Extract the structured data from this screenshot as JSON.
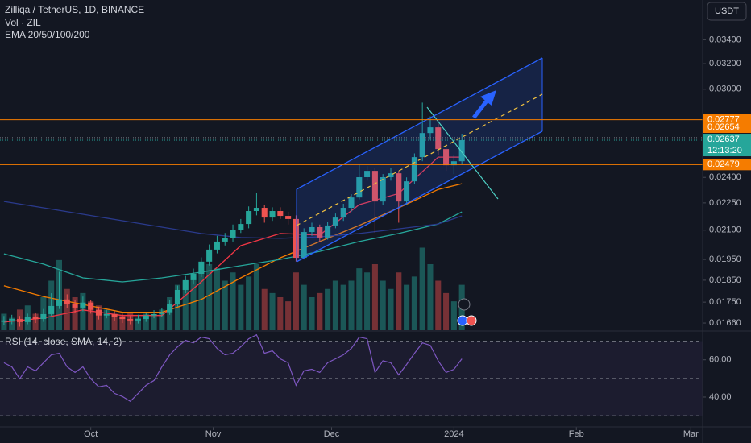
{
  "chart_data": [
    {
      "type": "candlestick",
      "title": "Zilliqa / TetherUS, 1D, BINANCE",
      "currency": "USDT",
      "x": [
        1,
        3,
        5,
        7,
        9,
        11,
        13,
        15,
        17,
        19,
        21,
        23,
        25,
        27,
        29,
        31,
        33,
        35,
        37,
        39,
        41,
        43,
        45,
        47,
        49,
        51,
        53,
        55,
        57,
        59,
        61,
        63,
        65,
        67,
        69,
        71,
        73,
        75,
        77,
        79,
        81,
        83,
        85,
        87,
        89,
        91,
        93,
        95,
        97,
        99,
        101,
        103,
        105,
        107,
        109,
        111,
        113,
        115,
        117
      ],
      "open": [
        0.01665,
        0.01671,
        0.01677,
        0.01664,
        0.01685,
        0.01677,
        0.01698,
        0.01733,
        0.01762,
        0.0174,
        0.01726,
        0.01748,
        0.01716,
        0.01692,
        0.01698,
        0.01685,
        0.01677,
        0.01671,
        0.01677,
        0.01692,
        0.01698,
        0.01706,
        0.0174,
        0.01805,
        0.0185,
        0.0188,
        0.01939,
        0.01999,
        0.0204,
        0.02057,
        0.02103,
        0.02133,
        0.02204,
        0.02222,
        0.02168,
        0.02204,
        0.02177,
        0.0216,
        0.01958,
        0.0209,
        0.02116,
        0.02061,
        0.02125,
        0.02168,
        0.02222,
        0.02281,
        0.02401,
        0.0244,
        0.02258,
        0.02401,
        0.02425,
        0.02258,
        0.02376,
        0.02526,
        0.02685,
        0.02724,
        0.02578,
        0.02475,
        0.025
      ],
      "close": [
        0.01671,
        0.01677,
        0.01664,
        0.01685,
        0.01677,
        0.01698,
        0.01733,
        0.01762,
        0.0174,
        0.01726,
        0.01748,
        0.01716,
        0.01692,
        0.01698,
        0.01685,
        0.01677,
        0.01671,
        0.01677,
        0.01692,
        0.01698,
        0.01706,
        0.0174,
        0.01805,
        0.0185,
        0.0188,
        0.01939,
        0.01999,
        0.0204,
        0.02057,
        0.02103,
        0.02133,
        0.02204,
        0.02222,
        0.02168,
        0.02204,
        0.02177,
        0.0216,
        0.01958,
        0.0209,
        0.02116,
        0.02061,
        0.02125,
        0.02168,
        0.02222,
        0.02281,
        0.02401,
        0.0244,
        0.02258,
        0.02401,
        0.02425,
        0.02258,
        0.02376,
        0.02526,
        0.02685,
        0.02724,
        0.02578,
        0.02475,
        0.025,
        0.02637
      ],
      "high": [
        0.0169,
        0.01695,
        0.0169,
        0.017,
        0.01705,
        0.0172,
        0.0179,
        0.0189,
        0.01785,
        0.0176,
        0.01775,
        0.0176,
        0.0173,
        0.01715,
        0.0171,
        0.017,
        0.0169,
        0.01695,
        0.01705,
        0.01715,
        0.01725,
        0.0176,
        0.01825,
        0.0187,
        0.01905,
        0.0196,
        0.02025,
        0.0207,
        0.02085,
        0.0213,
        0.0216,
        0.0223,
        0.02309,
        0.0224,
        0.02225,
        0.02225,
        0.022,
        0.0218,
        0.0211,
        0.0214,
        0.0213,
        0.02145,
        0.0219,
        0.02245,
        0.023,
        0.0248,
        0.0247,
        0.0246,
        0.0242,
        0.0246,
        0.0244,
        0.024,
        0.0255,
        0.029,
        0.028,
        0.0275,
        0.026,
        0.0254,
        0.0268
      ],
      "low": [
        0.0165,
        0.01655,
        0.01645,
        0.01655,
        0.0166,
        0.01665,
        0.0169,
        0.0172,
        0.01725,
        0.01705,
        0.0171,
        0.017,
        0.01675,
        0.0168,
        0.0167,
        0.0166,
        0.01655,
        0.01658,
        0.01665,
        0.0168,
        0.01685,
        0.01695,
        0.0173,
        0.0179,
        0.0183,
        0.01865,
        0.0192,
        0.0198,
        0.0202,
        0.0204,
        0.02085,
        0.0211,
        0.0218,
        0.0214,
        0.0215,
        0.0216,
        0.0213,
        0.0194,
        0.0195,
        0.0207,
        0.0204,
        0.0205,
        0.0211,
        0.0215,
        0.022,
        0.0227,
        0.0238,
        0.02086,
        0.0224,
        0.0238,
        0.0214,
        0.0224,
        0.0236,
        0.025,
        0.0264,
        0.0254,
        0.0244,
        0.0242,
        0.0248
      ],
      "up_color": "#26a69a",
      "down_color": "#ef5350",
      "volume": {
        "name": "Vol · ZIL",
        "values": [
          20,
          15,
          25,
          30,
          20,
          40,
          60,
          85,
          50,
          40,
          45,
          35,
          30,
          25,
          20,
          18,
          22,
          15,
          20,
          18,
          25,
          40,
          55,
          60,
          65,
          70,
          80,
          75,
          60,
          70,
          55,
          65,
          80,
          50,
          45,
          40,
          35,
          70,
          55,
          40,
          45,
          50,
          60,
          55,
          60,
          75,
          70,
          80,
          60,
          50,
          70,
          55,
          65,
          100,
          80,
          60,
          45,
          35,
          55
        ]
      },
      "volume_lim": [
        0,
        400
      ],
      "lines": {
        "name": "EMA 20/50/100/200",
        "x": [
          1,
          11,
          21,
          31,
          41,
          51,
          61,
          71,
          81,
          91,
          101,
          111,
          117
        ],
        "series": [
          {
            "color": "#f23645",
            "values": [
              0.01664,
              0.01681,
              0.01716,
              0.01692,
              0.01692,
              0.01842,
              0.02019,
              0.02082,
              0.02074,
              0.0224,
              0.02304,
              0.02526,
              0.02526
            ]
          },
          {
            "color": "#f57c00",
            "values": [
              0.01824,
              0.01775,
              0.0174,
              0.01706,
              0.01706,
              0.01762,
              0.01861,
              0.01958,
              0.0204,
              0.02125,
              0.02222,
              0.02328,
              0.02362
            ]
          },
          {
            "color": "#26a69a",
            "values": [
              0.01978,
              0.01927,
              0.01861,
              0.01842,
              0.01861,
              0.01888,
              0.01919,
              0.0195,
              0.0199,
              0.0204,
              0.02082,
              0.02133,
              0.02199
            ]
          },
          {
            "color": "#2a3a8c",
            "values": [
              0.02258,
              0.02222,
              0.02186,
              0.02151,
              0.02116,
              0.02082,
              0.02061,
              0.02057,
              0.02065,
              0.02082,
              0.02107,
              0.02133,
              0.02177
            ]
          }
        ]
      },
      "xlim": [
        0,
        178
      ],
      "xticks": [
        {
          "value": 23,
          "label": "Oct"
        },
        {
          "value": 54,
          "label": "Nov"
        },
        {
          "value": 84,
          "label": "Dec"
        },
        {
          "value": 115,
          "label": "2024"
        },
        {
          "value": 146,
          "label": "Feb"
        },
        {
          "value": 175,
          "label": "Mar"
        }
      ],
      "ylim": [
        0.0163,
        0.0376
      ],
      "log_scale": true,
      "yticks": [
        {
          "value": 0.034,
          "label": "0.03400"
        },
        {
          "value": 0.032,
          "label": "0.03200"
        },
        {
          "value": 0.03,
          "label": "0.03000"
        },
        {
          "value": 0.024,
          "label": "0.02400"
        },
        {
          "value": 0.0225,
          "label": "0.02250"
        },
        {
          "value": 0.021,
          "label": "0.02100"
        },
        {
          "value": 0.0195,
          "label": "0.01950"
        },
        {
          "value": 0.0185,
          "label": "0.01850"
        },
        {
          "value": 0.0175,
          "label": "0.01750"
        },
        {
          "value": 0.0166,
          "label": "0.01660"
        }
      ],
      "price_markers": [
        {
          "value": 0.02637,
          "color": "#26a69a",
          "line_color": "#26a69a",
          "style": "dotted",
          "countdown": "12:13:20"
        },
        {
          "value": 0.02777,
          "color": "#f57c00",
          "line_color": "#f57c00",
          "style": "solid"
        },
        {
          "value": 0.02654,
          "color": "#f57c00",
          "line_color": "#787b86",
          "style": "dotted"
        },
        {
          "value": 0.02479,
          "color": "#f57c00",
          "line_color": "#f57c00",
          "style": "solid"
        }
      ]
    },
    {
      "type": "line",
      "title": "RSI (14, close, SMA, 14, 2)",
      "x": [
        1,
        3,
        5,
        7,
        9,
        11,
        13,
        15,
        17,
        19,
        21,
        23,
        25,
        27,
        29,
        31,
        33,
        35,
        37,
        39,
        41,
        43,
        45,
        47,
        49,
        51,
        53,
        55,
        57,
        59,
        61,
        63,
        65,
        67,
        69,
        71,
        73,
        75,
        77,
        79,
        81,
        83,
        85,
        87,
        89,
        91,
        93,
        95,
        97,
        99,
        101,
        103,
        105,
        107,
        109,
        111,
        113,
        115,
        117
      ],
      "values": [
        58.4,
        56.2,
        49.8,
        56.2,
        54.1,
        58.4,
        62.7,
        63.5,
        56.2,
        53.2,
        56.2,
        49.8,
        45.5,
        46.3,
        42.0,
        40.3,
        37.7,
        42.0,
        46.3,
        48.9,
        56.2,
        62.7,
        67.0,
        70.4,
        69.1,
        72.2,
        71.3,
        66.1,
        62.7,
        63.5,
        67.0,
        71.3,
        73.4,
        63.5,
        64.8,
        60.5,
        58.4,
        46.3,
        54.1,
        54.9,
        53.2,
        58.4,
        60.5,
        62.7,
        66.1,
        72.2,
        71.3,
        53.2,
        59.5,
        58.4,
        51.9,
        57.5,
        63.5,
        69.1,
        67.8,
        59.5,
        53.2,
        54.9,
        60.5
      ],
      "color": "#7e57c2",
      "ylim": [
        24,
        75
      ],
      "yticks": [
        {
          "value": 60,
          "label": "60.00"
        },
        {
          "value": 40,
          "label": "40.00"
        }
      ],
      "levels": [
        70,
        50,
        30
      ]
    }
  ]
}
